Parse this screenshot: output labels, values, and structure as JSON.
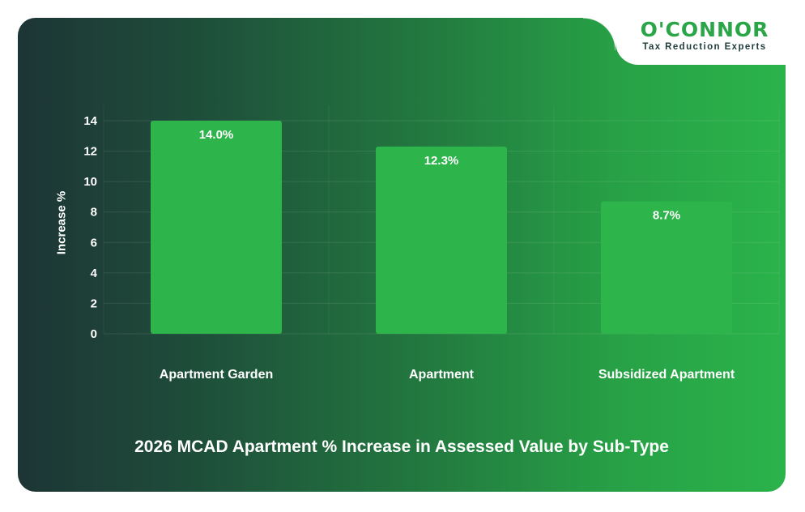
{
  "brand": {
    "name": "O'CONNOR",
    "tagline": "Tax Reduction Experts",
    "colors": {
      "green": "#2aa548",
      "dark": "#1d3535"
    }
  },
  "chart_data": {
    "type": "bar",
    "title": "2026 MCAD Apartment % Increase in Assessed Value by Sub-Type",
    "xlabel": "",
    "ylabel": "Increase %",
    "categories": [
      "Apartment Garden",
      "Apartment",
      "Subsidized Apartment"
    ],
    "values": [
      14.0,
      12.3,
      8.7
    ],
    "data_labels": [
      "14.0%",
      "12.3%",
      "8.7%"
    ],
    "ylim": [
      0,
      14
    ],
    "yticks": [
      0,
      2,
      4,
      6,
      8,
      10,
      12,
      14
    ],
    "grid": true,
    "legend": "none",
    "bar_color": "#2db54b"
  }
}
